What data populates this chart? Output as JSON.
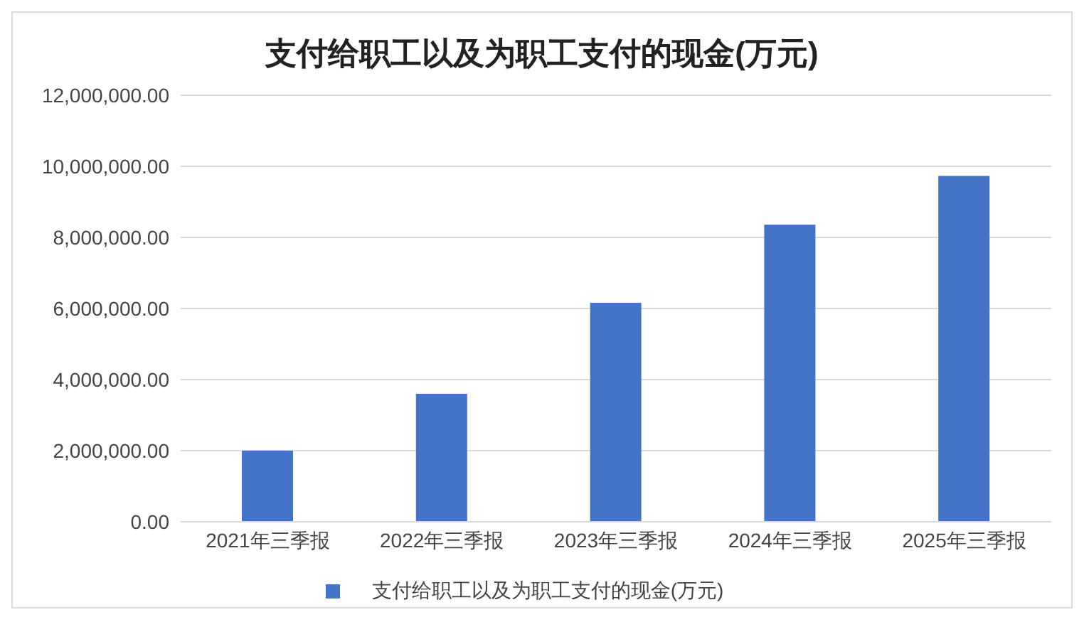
{
  "chart_data": {
    "type": "bar",
    "title": "支付给职工以及为职工支付的现金(万元)",
    "categories": [
      "2021年三季报",
      "2022年三季报",
      "2023年三季报",
      "2024年三季报",
      "2025年三季报"
    ],
    "series": [
      {
        "name": "支付给职工以及为职工支付的现金(万元)",
        "color": "#4472c4",
        "values": [
          2000000,
          3600000,
          6160000,
          8360000,
          9730000
        ]
      }
    ],
    "ylim": [
      0,
      12000000
    ],
    "yticks": [
      {
        "value": 0,
        "label": "0.00"
      },
      {
        "value": 2000000,
        "label": "2,000,000.00"
      },
      {
        "value": 4000000,
        "label": "4,000,000.00"
      },
      {
        "value": 6000000,
        "label": "6,000,000.00"
      },
      {
        "value": 8000000,
        "label": "8,000,000.00"
      },
      {
        "value": 10000000,
        "label": "10,000,000.00"
      },
      {
        "value": 12000000,
        "label": "12,000,000.00"
      }
    ],
    "grid": "y",
    "legend": "bottom"
  }
}
